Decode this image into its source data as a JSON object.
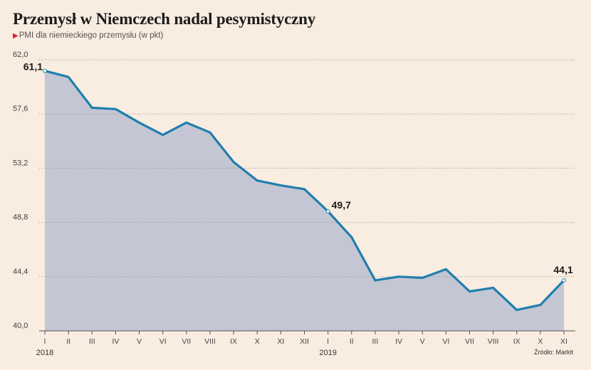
{
  "title": "Przemysł w Niemczech nadal pesymistyczny",
  "subtitle_marker": "▶",
  "subtitle": "PMI dla niemieckiego przemysłu (w pkt)",
  "source": "Źródło: Markit",
  "colors": {
    "line": "#1f7fad",
    "area": "#c4c6d4",
    "grid": "#999999",
    "background": "#f9ece0"
  },
  "chart_data": {
    "type": "area",
    "x": [
      "I",
      "II",
      "III",
      "IV",
      "V",
      "VI",
      "VII",
      "VIII",
      "IX",
      "X",
      "XI",
      "XII",
      "I",
      "II",
      "III",
      "IV",
      "V",
      "VI",
      "VII",
      "VIII",
      "IX",
      "X",
      "XI"
    ],
    "years": [
      {
        "label": "2018",
        "index": 0
      },
      {
        "label": "2019",
        "index": 12
      }
    ],
    "values": [
      61.1,
      60.6,
      58.1,
      58.0,
      56.9,
      55.9,
      56.9,
      56.1,
      53.7,
      52.2,
      51.8,
      51.5,
      49.7,
      47.6,
      44.1,
      44.4,
      44.3,
      45.0,
      43.2,
      43.5,
      41.7,
      42.1,
      44.1
    ],
    "ylim": [
      40.0,
      62.0
    ],
    "yticks": [
      "40,0",
      "44,4",
      "48,8",
      "53,2",
      "57,6",
      "62,0"
    ],
    "ytick_values": [
      40.0,
      44.4,
      48.8,
      53.2,
      57.6,
      62.0
    ],
    "annotations": [
      {
        "index": 0,
        "label": "61,1"
      },
      {
        "index": 12,
        "label": "49,7"
      },
      {
        "index": 22,
        "label": "44,1"
      }
    ],
    "grid": true
  }
}
